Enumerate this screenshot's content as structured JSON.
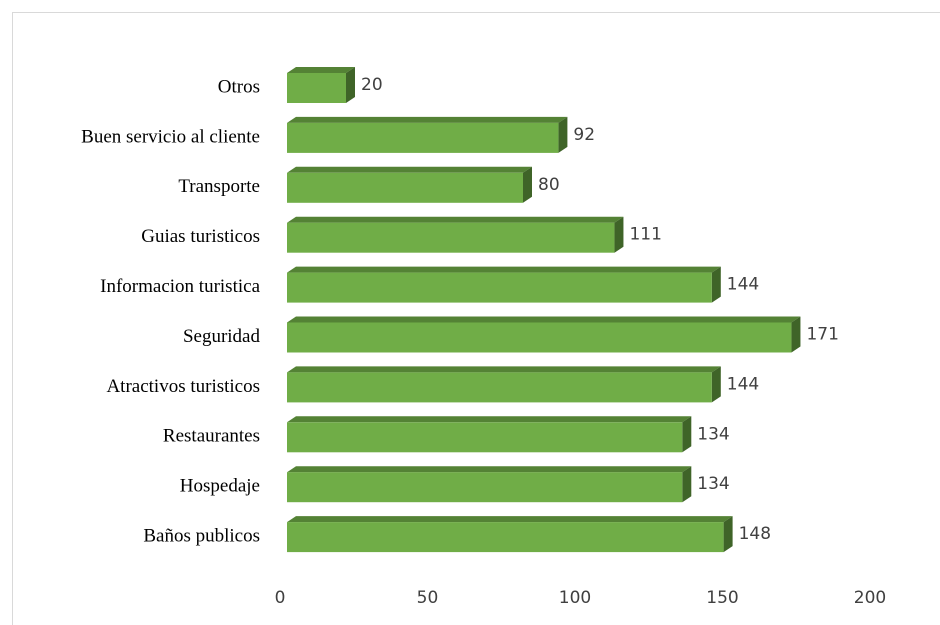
{
  "chart_data": {
    "type": "bar",
    "orientation": "horizontal",
    "three_d": true,
    "categories": [
      "Otros",
      "Buen servicio al cliente",
      "Transporte",
      "Guias turisticos",
      "Informacion turistica",
      "Seguridad",
      "Atractivos turisticos",
      "Restaurantes",
      "Hospedaje",
      "Baños publicos"
    ],
    "values": [
      20,
      92,
      80,
      111,
      144,
      171,
      144,
      134,
      134,
      148
    ],
    "color": "#70ad47",
    "xlim": [
      0,
      200
    ],
    "xticks": [
      0,
      50,
      100,
      150,
      200
    ],
    "grid": false
  }
}
